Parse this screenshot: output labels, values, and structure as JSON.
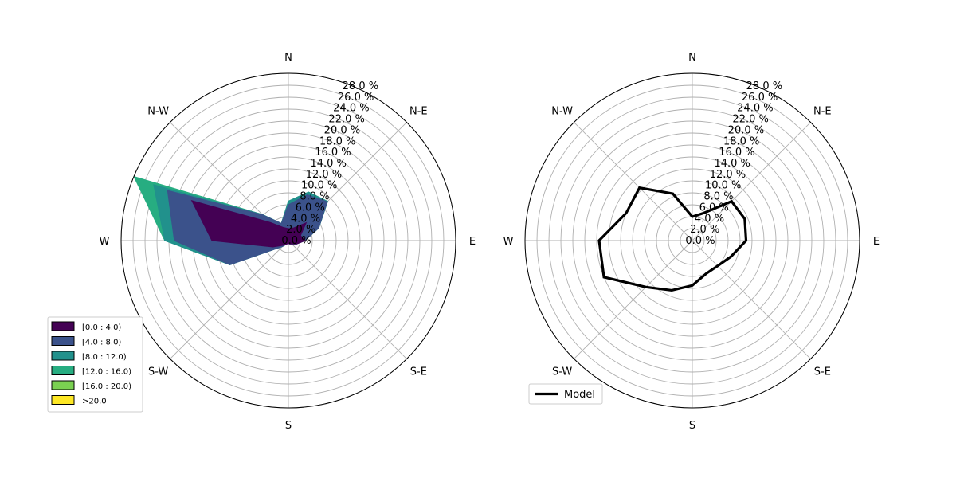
{
  "chart_data": [
    {
      "type": "windrose-stacked-area",
      "directions": [
        "N",
        "N-E",
        "E",
        "S-E",
        "S",
        "S-W",
        "W",
        "N-W"
      ],
      "sector_angles_deg": [
        90,
        67.5,
        45,
        22.5,
        0,
        337.5,
        315,
        292.5,
        270,
        247.5,
        225,
        202.5,
        180,
        157.5,
        135,
        112.5
      ],
      "radial_ticks": [
        "0.0 %",
        "2.0 %",
        "4.0 %",
        "6.0 %",
        "8.0 %",
        "10.0 %",
        "12.0 %",
        "14.0 %",
        "16.0 %",
        "18.0 %",
        "20.0 %",
        "22.0 %",
        "24.0 %",
        "26.0 %",
        "28.0 %"
      ],
      "rmax": 28,
      "grid": true,
      "legend_position": "lower-left",
      "series": [
        {
          "name": "[0.0 : 4.0)",
          "color": "#440154",
          "values": [
            2.0,
            2.3,
            4.2,
            2.2,
            2.8,
            1.5,
            0.8,
            0.6,
            0.5,
            0.6,
            1.1,
            2.8,
            12.8,
            17.5,
            4.3,
            2.4
          ]
        },
        {
          "name": "[4.0 : 8.0)",
          "color": "#3b528b",
          "values": [
            6.0,
            8.3,
            9.2,
            5.5,
            2.8,
            1.5,
            0.8,
            0.6,
            0.5,
            0.6,
            1.4,
            10.6,
            19.1,
            21.9,
            6.1,
            3.1
          ]
        },
        {
          "name": "[8.0 : 12.0)",
          "color": "#21918c",
          "values": [
            6.6,
            8.8,
            9.3,
            5.5,
            2.8,
            1.5,
            0.8,
            0.6,
            0.5,
            0.6,
            1.4,
            10.6,
            20.7,
            24.4,
            6.2,
            3.1
          ]
        },
        {
          "name": "[12.0 : 16.0)",
          "color": "#27ad81",
          "values": [
            6.6,
            8.8,
            9.3,
            5.5,
            2.8,
            1.5,
            0.8,
            0.6,
            0.5,
            0.6,
            1.4,
            10.6,
            20.7,
            28.0,
            6.2,
            3.1
          ]
        },
        {
          "name": "[16.0 : 20.0)",
          "color": "#7ad151",
          "values": null
        },
        {
          "name": ">20.0",
          "color": "#fde725",
          "values": null
        }
      ]
    },
    {
      "type": "windrose-line",
      "directions": [
        "N",
        "N-E",
        "E",
        "S-E",
        "S",
        "S-W",
        "W",
        "N-W"
      ],
      "radial_ticks": [
        "0.0 %",
        "2.0 %",
        "4.0 %",
        "6.0 %",
        "8.0 %",
        "10.0 %",
        "12.0 %",
        "14.0 %",
        "16.0 %",
        "18.0 %",
        "20.0 %",
        "22.0 %",
        "24.0 %",
        "26.0 %",
        "28.0 %"
      ],
      "rmax": 28,
      "grid": true,
      "legend_position": "lower-left",
      "series": [
        {
          "name": "Model",
          "color": "#000000",
          "values": [
            4.0,
            5.0,
            9.3,
            9.5,
            9.0,
            7.0,
            6.0,
            6.0,
            7.5,
            9.0,
            11.0,
            16.0,
            15.6,
            12.0,
            12.5,
            8.5
          ]
        }
      ]
    }
  ]
}
